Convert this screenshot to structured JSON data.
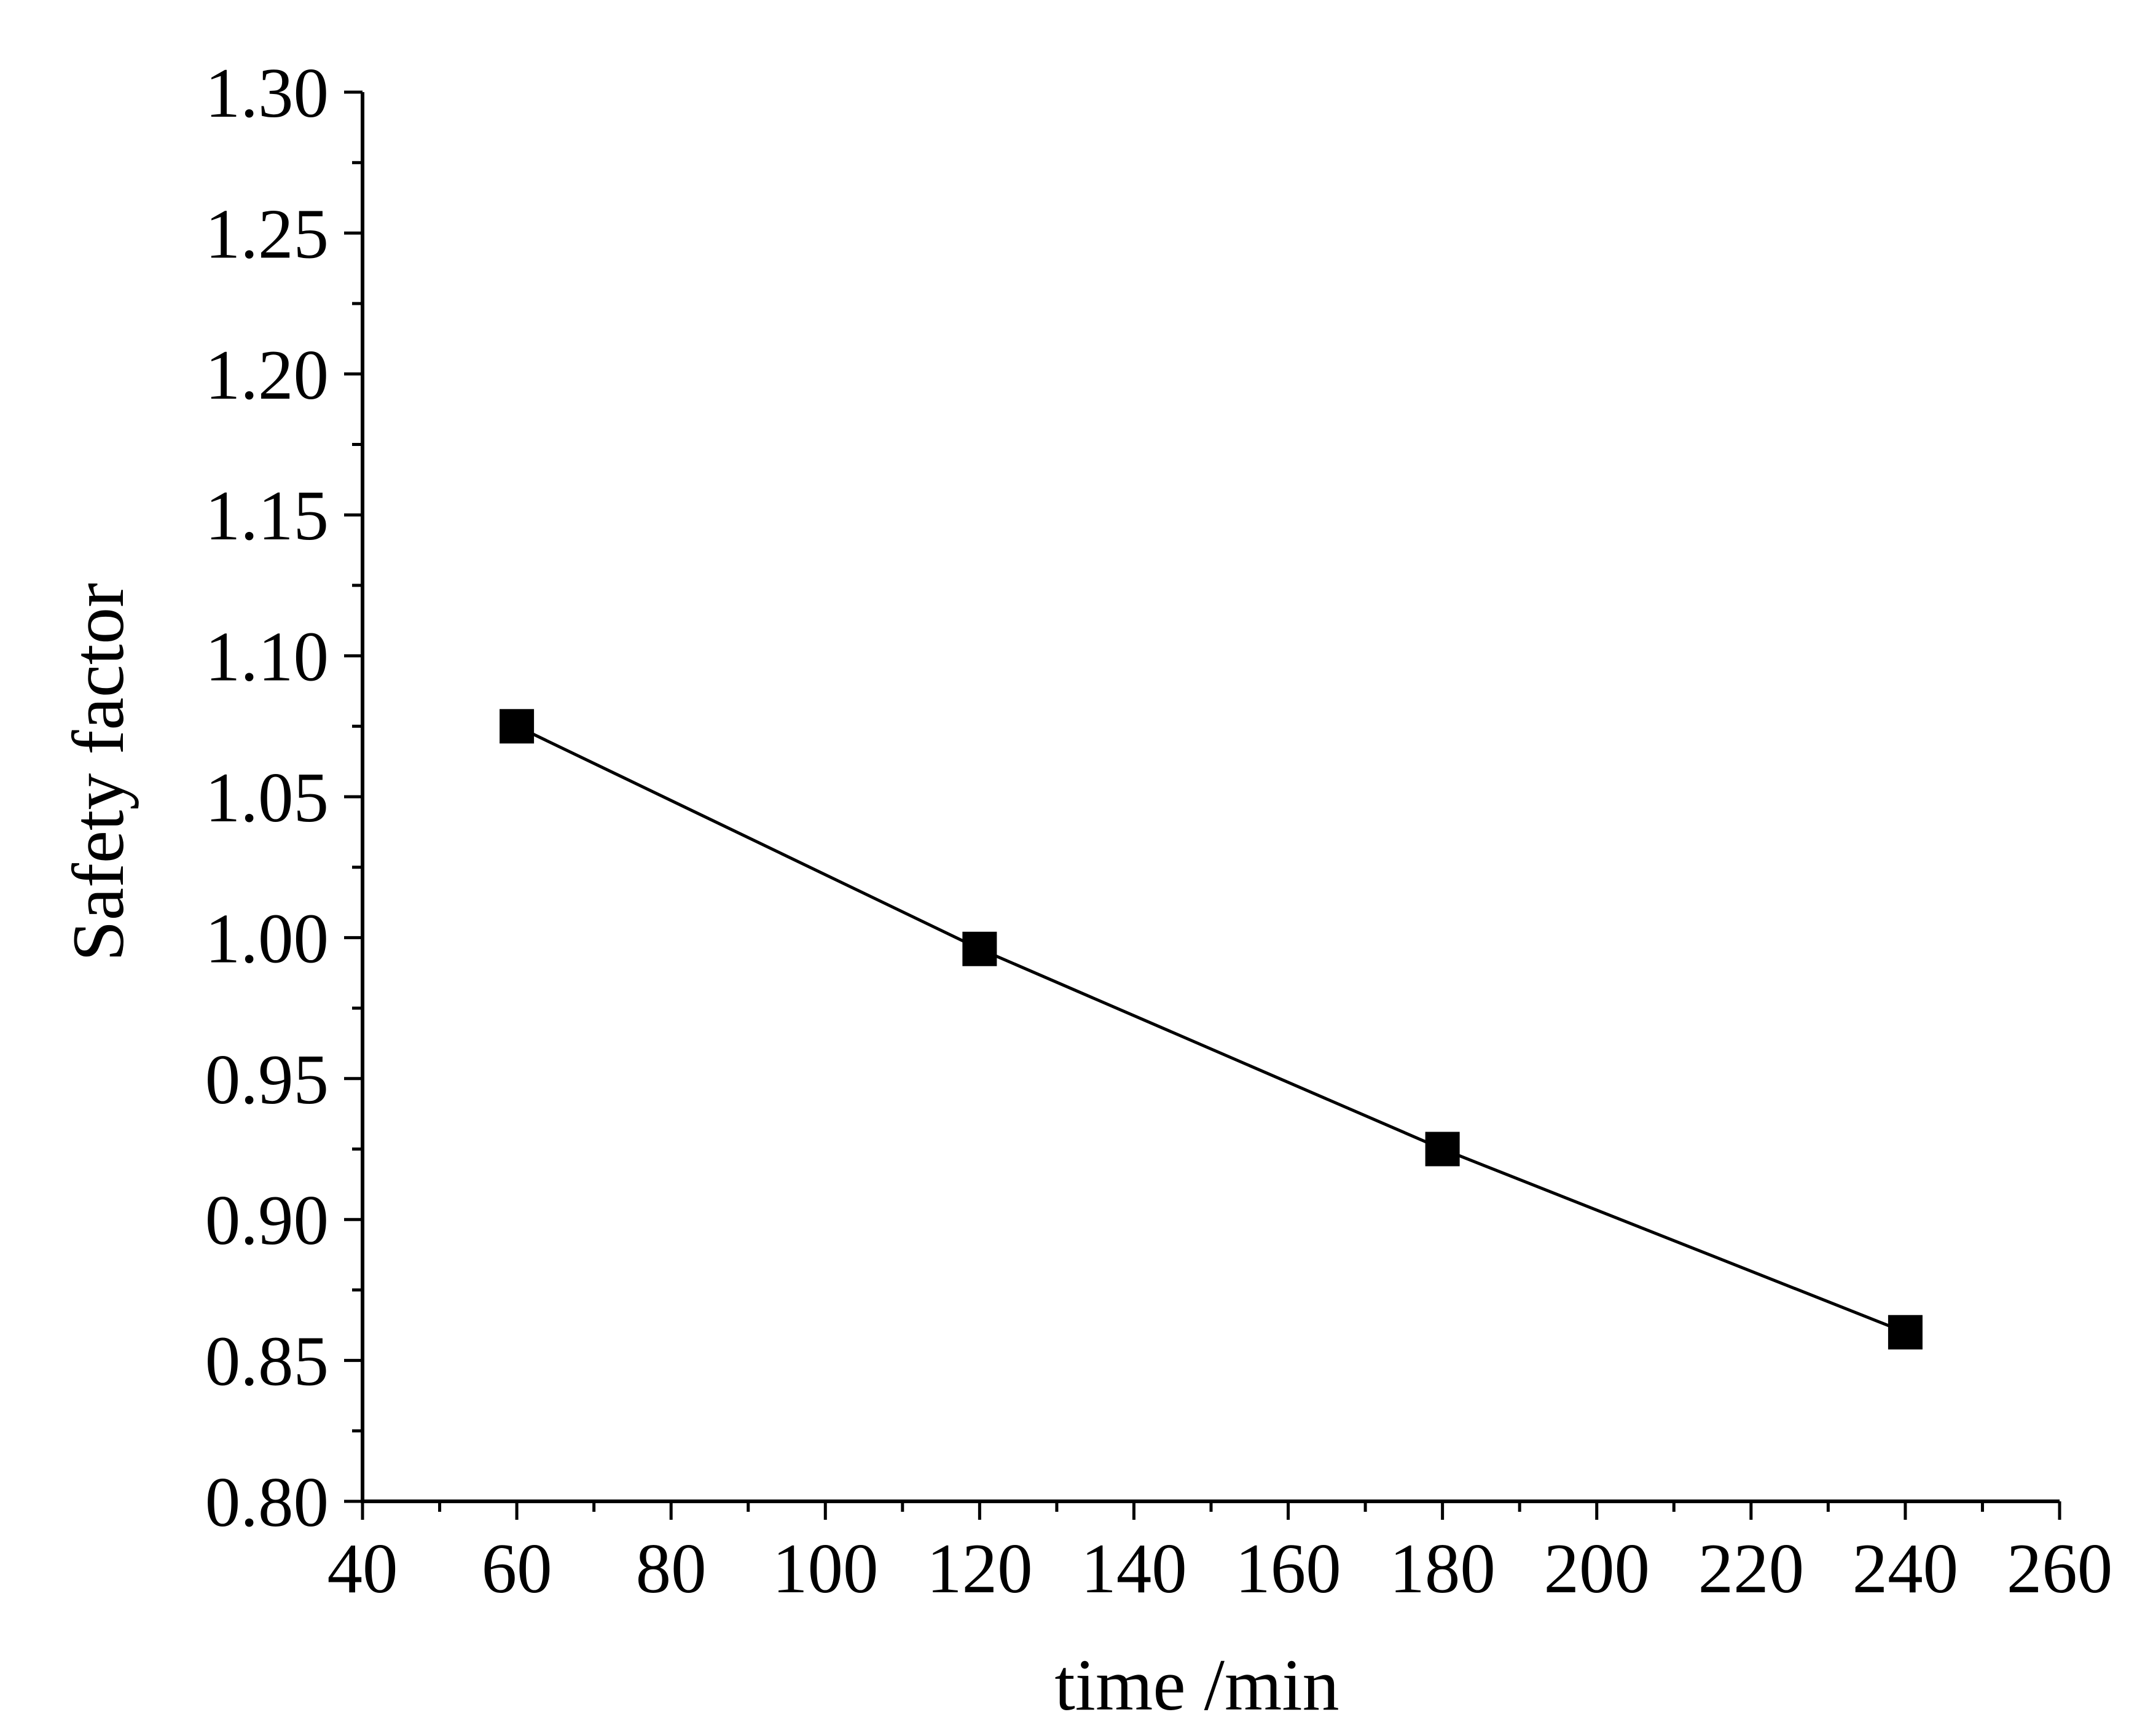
{
  "chart_data": {
    "type": "line",
    "title": "",
    "xlabel": "time /min",
    "ylabel": "Safety factor",
    "xlim": [
      40,
      260
    ],
    "ylim": [
      0.8,
      1.3
    ],
    "x_ticks": [
      40,
      60,
      80,
      100,
      120,
      140,
      160,
      180,
      200,
      220,
      240,
      260
    ],
    "y_ticks": [
      "0.80",
      "0.85",
      "0.90",
      "0.95",
      "1.00",
      "1.05",
      "1.10",
      "1.15",
      "1.20",
      "1.25",
      "1.30"
    ],
    "grid": false,
    "legend": "none",
    "series": [
      {
        "marker": "square",
        "color": "#000000",
        "x": [
          60,
          120,
          180,
          240
        ],
        "y": [
          1.075,
          0.996,
          0.925,
          0.86
        ]
      }
    ]
  }
}
